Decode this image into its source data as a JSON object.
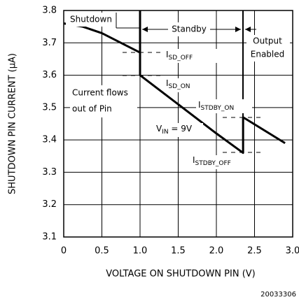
{
  "chart_data": {
    "type": "line",
    "x_label": "VOLTAGE ON SHUTDOWN PIN (V)",
    "y_label": "SHUTDOWN PIN CURRENT (μA)",
    "footnote": "20033306",
    "xlim": [
      0,
      3.0
    ],
    "ylim": [
      3.1,
      3.8
    ],
    "xticks": [
      0,
      0.5,
      {
        "value": 1,
        "label": "1.0"
      },
      1.5,
      {
        "value": 2,
        "label": "2.0"
      },
      2.5,
      {
        "value": 3,
        "label": "3.0"
      }
    ],
    "yticks": [
      3.1,
      3.2,
      3.3,
      3.4,
      3.5,
      3.6,
      3.7,
      3.8
    ],
    "grid": true,
    "series": [
      {
        "color": "#000000",
        "x": [
          0,
          0.25,
          0.5,
          0.75,
          1.0,
          1.0,
          1.5,
          2.0,
          2.35,
          2.35,
          2.9
        ],
        "values": [
          3.76,
          3.75,
          3.73,
          3.7,
          3.67,
          3.6,
          3.51,
          3.42,
          3.36,
          3.47,
          3.39
        ]
      }
    ],
    "region_labels": [
      "Shutdown",
      "Standby",
      "Output",
      "Enabled"
    ],
    "notes": [
      "Current flows",
      "out of Pin"
    ],
    "annotations": [
      {
        "text": "I",
        "sub": "SD_OFF"
      },
      {
        "text": "I",
        "sub": "SD_ON"
      },
      {
        "text": "I",
        "sub": "STDBY_ON"
      },
      {
        "text": "I",
        "sub": "STDBY_OFF"
      },
      {
        "text": "V",
        "sub": "IN",
        "rest": " = 9V"
      }
    ]
  }
}
